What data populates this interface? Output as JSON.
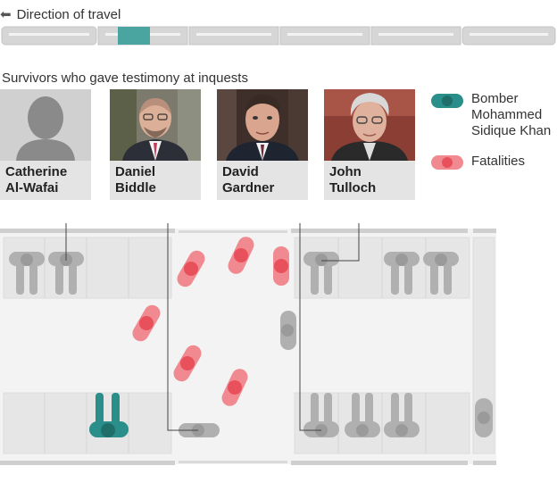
{
  "header": {
    "direction_label": "Direction of travel",
    "arrow_icon": "arrow-left-icon"
  },
  "section_title": "Survivors who gave testimony at inquests",
  "survivors": [
    {
      "first": "Catherine",
      "last": "Al-Wafai",
      "photo": "silhouette-icon"
    },
    {
      "first": "Daniel",
      "last": "Biddle",
      "photo": "portrait-photo"
    },
    {
      "first": "David",
      "last": "Gardner",
      "photo": "portrait-photo"
    },
    {
      "first": "John",
      "last": "Tulloch",
      "photo": "portrait-photo"
    }
  ],
  "legend": {
    "bomber": {
      "lines": [
        "Bomber",
        "Mohammed",
        "Sidique Khan"
      ],
      "color": "#2a8f8a"
    },
    "fatalities": {
      "label": "Fatalities",
      "color": "#e8505b"
    }
  },
  "colors": {
    "seat": "#ececec",
    "person": "#b0b0b0",
    "train_highlight": "#4aa5a0"
  }
}
